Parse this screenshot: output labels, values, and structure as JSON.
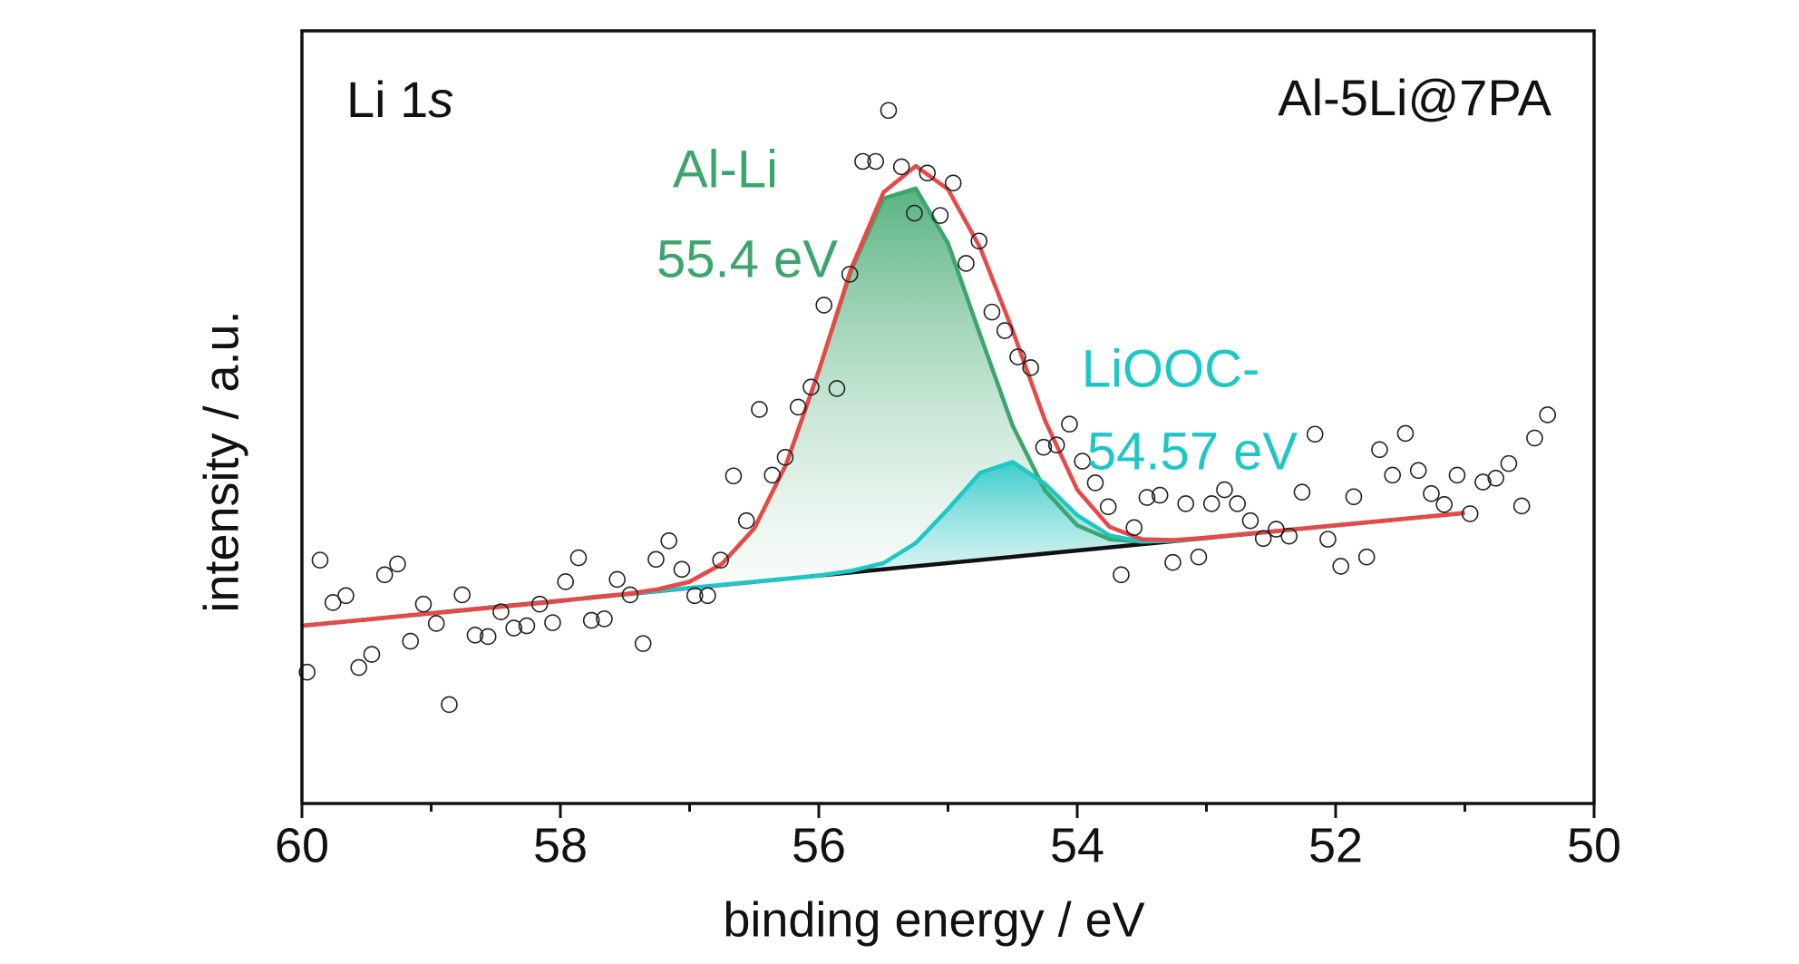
{
  "chart_data": {
    "type": "scatter",
    "label_parts": [
      "Li 1",
      "s"
    ],
    "sample": "Al-5Li@7PA",
    "annotations": [
      {
        "lines": [
          "Al-Li",
          "55.4 eV"
        ],
        "color": "#3ba56b"
      },
      {
        "lines": [
          "LiOOC-",
          "54.57 eV"
        ],
        "color": "#1fc6c6"
      }
    ],
    "x_label": "binding energy / eV",
    "y_label": "intensity / a.u.",
    "xlim": [
      60,
      50
    ],
    "xticks": [
      60,
      58,
      56,
      54,
      52,
      50
    ],
    "xminorticks": [
      59,
      57,
      55,
      53,
      51
    ],
    "ylim": [
      0,
      100
    ],
    "series": [
      {
        "type": "line",
        "color": "#111111",
        "x": [
          60,
          51
        ],
        "values": [
          23.0,
          37.6
        ]
      },
      {
        "type": "line",
        "color": "#3ba56b",
        "fill": true,
        "fill_to_series": 0,
        "x": [
          60,
          59.75,
          59.5,
          59.25,
          59,
          58.75,
          58.5,
          58.25,
          58,
          57.75,
          57.5,
          57.25,
          57,
          56.75,
          56.5,
          56.25,
          56,
          55.75,
          55.5,
          55.25,
          55,
          54.75,
          54.5,
          54.25,
          54,
          53.75,
          53.5,
          53.25,
          53,
          52.75,
          52.5,
          52.25,
          52,
          51.75,
          51.5,
          51.25,
          51
        ],
        "values": [
          23.0,
          23.4,
          23.8,
          24.2,
          24.6,
          25.0,
          25.4,
          25.8,
          26.2,
          26.7,
          27.1,
          27.7,
          28.7,
          31.0,
          35.6,
          44.0,
          56.0,
          69.0,
          78.3,
          79.6,
          72.5,
          60.6,
          48.9,
          40.5,
          36.0,
          34.2,
          33.9,
          34.0,
          34.4,
          34.8,
          35.2,
          35.6,
          36.0,
          36.4,
          36.8,
          37.2,
          37.6
        ]
      },
      {
        "type": "line",
        "color": "#1fc6c6",
        "fill": true,
        "fill_to_series": 0,
        "x": [
          60,
          59.75,
          59.5,
          59.25,
          59,
          58.75,
          58.5,
          58.25,
          58,
          57.75,
          57.5,
          57.25,
          57,
          56.75,
          56.5,
          56.25,
          56,
          55.75,
          55.5,
          55.25,
          55,
          54.75,
          54.5,
          54.25,
          54,
          53.75,
          53.5,
          53.25,
          53,
          52.75,
          52.5,
          52.25,
          52,
          51.75,
          51.5,
          51.25,
          51
        ],
        "values": [
          23.0,
          23.4,
          23.8,
          24.2,
          24.6,
          25.0,
          25.4,
          25.8,
          26.2,
          26.7,
          27.1,
          27.5,
          27.9,
          28.3,
          28.7,
          29.1,
          29.5,
          30.1,
          31.1,
          33.7,
          38.1,
          42.8,
          44.2,
          41.4,
          37.3,
          34.7,
          33.9,
          34.0,
          34.4,
          34.8,
          35.2,
          35.6,
          36.0,
          36.4,
          36.8,
          37.2,
          37.6
        ]
      },
      {
        "type": "line",
        "color": "#e84848",
        "x": [
          60,
          59.75,
          59.5,
          59.25,
          59,
          58.75,
          58.5,
          58.25,
          58,
          57.75,
          57.5,
          57.25,
          57,
          56.75,
          56.5,
          56.25,
          56,
          55.75,
          55.5,
          55.25,
          55,
          54.75,
          54.5,
          54.25,
          54,
          53.75,
          53.5,
          53.25,
          53,
          52.75,
          52.5,
          52.25,
          52,
          51.75,
          51.5,
          51.25,
          51
        ],
        "values": [
          23.0,
          23.4,
          23.8,
          24.2,
          24.6,
          25.0,
          25.4,
          25.8,
          26.2,
          26.7,
          27.1,
          27.7,
          28.7,
          31.0,
          35.6,
          44.0,
          56.0,
          69.2,
          79.1,
          82.5,
          79.5,
          71.9,
          61.2,
          49.6,
          40.6,
          35.8,
          34.2,
          34.1,
          34.4,
          34.8,
          35.2,
          35.6,
          36.0,
          36.4,
          36.8,
          37.2,
          37.6
        ]
      },
      {
        "type": "scatter",
        "color": "#222222",
        "x": [
          59.96,
          59.86,
          59.76,
          59.66,
          59.56,
          59.46,
          59.36,
          59.26,
          59.16,
          59.06,
          58.96,
          58.86,
          58.76,
          58.66,
          58.56,
          58.46,
          58.36,
          58.26,
          58.16,
          58.06,
          57.96,
          57.86,
          57.76,
          57.66,
          57.56,
          57.46,
          57.36,
          57.26,
          57.16,
          57.06,
          56.96,
          56.86,
          56.76,
          56.66,
          56.56,
          56.46,
          56.36,
          56.26,
          56.16,
          56.06,
          55.96,
          55.86,
          55.76,
          55.66,
          55.56,
          55.46,
          55.36,
          55.26,
          55.16,
          55.06,
          54.96,
          54.86,
          54.76,
          54.66,
          54.56,
          54.46,
          54.36,
          54.26,
          54.16,
          54.06,
          53.96,
          53.86,
          53.76,
          53.66,
          53.56,
          53.46,
          53.36,
          53.26,
          53.16,
          53.06,
          52.96,
          52.86,
          52.76,
          52.66,
          52.56,
          52.46,
          52.36,
          52.26,
          52.16,
          52.06,
          51.96,
          51.86,
          51.76,
          51.66,
          51.56,
          51.46,
          51.36,
          51.26,
          51.16,
          51.06,
          50.96,
          50.86,
          50.76,
          50.66,
          50.56,
          50.46,
          50.36
        ],
        "values": [
          17.0,
          31.5,
          26.0,
          26.9,
          17.6,
          19.3,
          29.6,
          31.0,
          21.0,
          25.8,
          23.3,
          12.8,
          27.0,
          21.8,
          21.6,
          24.8,
          22.7,
          23.0,
          25.8,
          23.4,
          28.7,
          31.8,
          23.7,
          23.9,
          29.0,
          27.0,
          20.7,
          31.6,
          34.0,
          30.3,
          26.9,
          26.9,
          31.5,
          42.4,
          36.6,
          51.0,
          42.5,
          44.8,
          51.3,
          53.9,
          64.5,
          53.7,
          68.5,
          83.1,
          83.1,
          89.7,
          82.4,
          76.4,
          81.6,
          76.1,
          80.3,
          69.9,
          72.8,
          63.6,
          61.2,
          57.8,
          56.4,
          46.1,
          46.4,
          49.1,
          44.3,
          41.5,
          38.4,
          29.6,
          35.7,
          39.6,
          39.9,
          31.2,
          38.8,
          31.9,
          38.8,
          40.6,
          38.8,
          36.6,
          34.3,
          35.5,
          34.6,
          40.3,
          47.8,
          34.2,
          30.7,
          39.7,
          31.9,
          45.8,
          42.5,
          47.9,
          43.1,
          40.1,
          38.7,
          42.5,
          37.5,
          41.6,
          42.1,
          44.0,
          38.5,
          47.3,
          50.3
        ]
      }
    ]
  }
}
